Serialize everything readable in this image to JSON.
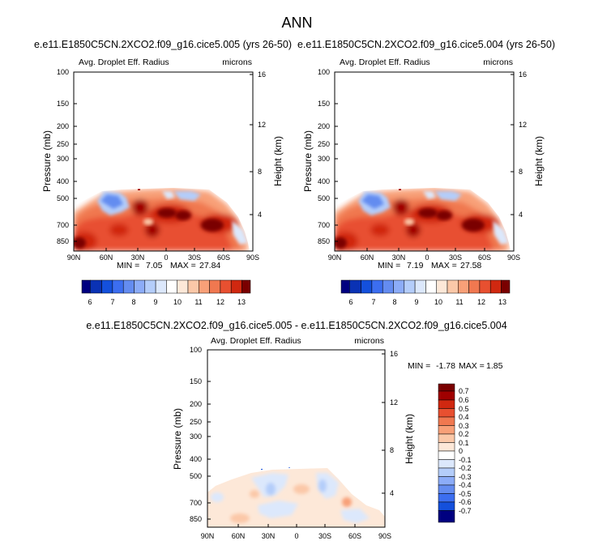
{
  "figure_title": "ANN",
  "chart_data": [
    {
      "type": "heatmap",
      "title": "e.e11.E1850C5CN.2XCO2.f09_g16.cice5.005 (yrs 26-50)",
      "subtitle_left": "Avg. Droplet Eff. Radius",
      "subtitle_right": "microns",
      "xlabel": "",
      "ylabel": "Pressure (mb)",
      "ylabel_right": "Height (km)",
      "x_ticks": [
        "90N",
        "60N",
        "30N",
        "0",
        "30S",
        "60S",
        "90S"
      ],
      "y_ticks": [
        "100",
        "150",
        "200",
        "250",
        "300",
        "400",
        "500",
        "700",
        "850"
      ],
      "y_ticks_right": [
        "16",
        "12",
        "8",
        "4"
      ],
      "min_label": "MIN =",
      "min_value": "7.05",
      "max_label": "MAX =",
      "max_value": "27.84",
      "colorbar": {
        "labels": [
          "6",
          "7",
          "8",
          "9",
          "10",
          "11",
          "12",
          "13"
        ],
        "colors": [
          "#000080",
          "#0a32b4",
          "#1450dc",
          "#3c6ef0",
          "#648cf0",
          "#8cacf8",
          "#b4cdfa",
          "#dce8fc",
          "#ffffff",
          "#fde8d8",
          "#fbc8a8",
          "#f8a078",
          "#f07850",
          "#e85030",
          "#d02810",
          "#a00000",
          "#7a0000"
        ]
      }
    },
    {
      "type": "heatmap",
      "title": "e.e11.E1850C5CN.2XCO2.f09_g16.cice5.004 (yrs 26-50)",
      "subtitle_left": "Avg. Droplet Eff. Radius",
      "subtitle_right": "microns",
      "xlabel": "",
      "ylabel": "Pressure (mb)",
      "ylabel_right": "Height (km)",
      "x_ticks": [
        "90N",
        "60N",
        "30N",
        "0",
        "30S",
        "60S",
        "90S"
      ],
      "y_ticks": [
        "100",
        "150",
        "200",
        "250",
        "300",
        "400",
        "500",
        "700",
        "850"
      ],
      "y_ticks_right": [
        "16",
        "12",
        "8",
        "4"
      ],
      "min_label": "MIN =",
      "min_value": "7.19",
      "max_label": "MAX =",
      "max_value": "27.58",
      "colorbar": {
        "labels": [
          "6",
          "7",
          "8",
          "9",
          "10",
          "11",
          "12",
          "13"
        ],
        "colors": [
          "#000080",
          "#0a32b4",
          "#1450dc",
          "#3c6ef0",
          "#648cf0",
          "#8cacf8",
          "#b4cdfa",
          "#dce8fc",
          "#ffffff",
          "#fde8d8",
          "#fbc8a8",
          "#f8a078",
          "#f07850",
          "#e85030",
          "#d02810",
          "#a00000",
          "#7a0000"
        ]
      }
    },
    {
      "type": "heatmap",
      "title": "e.e11.E1850C5CN.2XCO2.f09_g16.cice5.005 - e.e11.E1850C5CN.2XCO2.f09_g16.cice5.004",
      "subtitle_left": "Avg. Droplet Eff. Radius",
      "subtitle_right": "microns",
      "xlabel": "",
      "ylabel": "Pressure (mb)",
      "ylabel_right": "Height (km)",
      "x_ticks": [
        "90N",
        "60N",
        "30N",
        "0",
        "30S",
        "60S",
        "90S"
      ],
      "y_ticks": [
        "100",
        "150",
        "200",
        "250",
        "300",
        "400",
        "500",
        "700",
        "850"
      ],
      "y_ticks_right": [
        "16",
        "12",
        "8",
        "4"
      ],
      "min_label": "MIN =",
      "min_value": "-1.78",
      "max_label": "MAX =",
      "max_value": "1.85",
      "colorbar": {
        "labels": [
          "0.7",
          "0.6",
          "0.5",
          "0.4",
          "0.3",
          "0.2",
          "0.1",
          "0",
          "-0.1",
          "-0.2",
          "-0.3",
          "-0.4",
          "-0.5",
          "-0.6",
          "-0.7"
        ],
        "colors": [
          "#7a0000",
          "#a00000",
          "#d02810",
          "#e85030",
          "#f07850",
          "#f8a078",
          "#fbc8a8",
          "#fde8d8",
          "#ffffff",
          "#dce8fc",
          "#b4cdfa",
          "#8cacf8",
          "#648cf0",
          "#3c6ef0",
          "#1450dc",
          "#000080"
        ]
      }
    }
  ]
}
